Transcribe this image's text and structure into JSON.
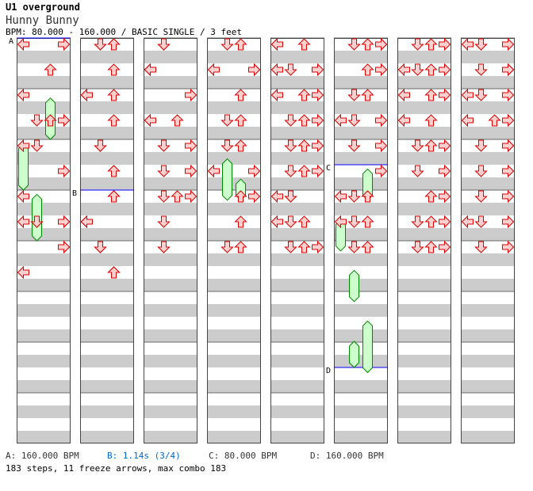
{
  "song": {
    "title": "U1 overground",
    "subtitle": "Hunny Bunny",
    "info": "BPM: 80.000 - 160.000 / BASIC SINGLE / 3 feet"
  },
  "colors": {
    "band_gray": "#cccccc",
    "arrow_fill": "#ffd0d0",
    "arrow_stroke": "#dd0000",
    "freeze_fill": "#ccffcc",
    "freeze_stroke": "#008800",
    "marker_line": "#0000ff",
    "bpm_b_color": "#0066cc"
  },
  "icons": {
    "arrow": "dance-arrow-icon (left/down/up/right)",
    "freeze": "freeze-arrow-bar"
  },
  "bpm_changes": [
    {
      "label": "A",
      "text": "A: 160.000 BPM",
      "color": "#333333",
      "column": 0,
      "position": 0
    },
    {
      "label": "B",
      "text": "B: 1.14s (3/4)",
      "color": "#0066cc",
      "column": 1,
      "position": 3
    },
    {
      "label": "C",
      "text": "C: 80.000 BPM",
      "color": "#333333",
      "column": 5,
      "position": 2.5
    },
    {
      "label": "D",
      "text": "D: 160.000 BPM",
      "color": "#333333",
      "column": 5,
      "position": 6.5
    }
  ],
  "stats": "183 steps, 11 freeze arrows, max combo 183",
  "chart": {
    "columns": 8,
    "measures_per_column": 8,
    "lanes": [
      "left",
      "down",
      "up",
      "right"
    ],
    "notes": [
      [
        [
          0,
          0,
          0
        ],
        [
          0,
          0,
          3
        ],
        [
          1,
          1,
          2
        ],
        [
          2,
          1,
          0
        ],
        [
          3,
          1,
          1
        ],
        [
          3,
          2,
          2
        ],
        [
          3,
          3,
          3
        ],
        [
          4,
          1,
          0
        ],
        [
          4,
          1,
          1
        ],
        [
          5,
          1,
          3
        ],
        [
          6,
          1,
          0
        ],
        [
          7,
          0,
          3
        ],
        [
          7,
          2,
          1
        ],
        [
          7,
          3,
          1
        ],
        [
          7,
          3,
          0
        ],
        [
          7,
          3,
          3
        ],
        [
          8,
          0,
          3
        ],
        [
          8,
          1,
          3
        ],
        [
          9,
          1,
          0
        ]
      ],
      [
        [
          0,
          0,
          2
        ],
        [
          0,
          1,
          2
        ],
        [
          0,
          2,
          1
        ],
        [
          0,
          3,
          1
        ],
        [
          1,
          1,
          2
        ],
        [
          2,
          0,
          0
        ],
        [
          2,
          1,
          0
        ],
        [
          2,
          3,
          2
        ],
        [
          3,
          1,
          2
        ],
        [
          4,
          1,
          1
        ],
        [
          4,
          2,
          1
        ],
        [
          4,
          3,
          1
        ],
        [
          5,
          1,
          2
        ],
        [
          5,
          2,
          2
        ],
        [
          6,
          1,
          2
        ],
        [
          6,
          2,
          2
        ],
        [
          6,
          3,
          2
        ],
        [
          7,
          1,
          0
        ],
        [
          7,
          2,
          0
        ],
        [
          7,
          3,
          0
        ],
        [
          8,
          0,
          1
        ],
        [
          8,
          1,
          1
        ],
        [
          8,
          2,
          1
        ],
        [
          9,
          1,
          2
        ],
        [
          9,
          2,
          2
        ],
        [
          9,
          3,
          2
        ]
      ],
      [
        [
          0,
          1,
          1
        ],
        [
          0,
          2,
          1
        ],
        [
          0,
          3,
          1
        ],
        [
          1,
          1,
          0
        ],
        [
          1,
          2,
          0
        ],
        [
          1,
          3,
          0
        ],
        [
          2,
          1,
          3
        ],
        [
          3,
          0,
          0
        ],
        [
          3,
          1,
          2
        ],
        [
          3,
          2,
          0
        ],
        [
          4,
          1,
          1
        ],
        [
          4,
          2,
          3
        ],
        [
          5,
          1,
          1
        ],
        [
          5,
          2,
          3
        ],
        [
          6,
          1,
          2
        ],
        [
          6,
          2,
          3
        ],
        [
          6,
          3,
          1
        ],
        [
          7,
          3,
          1
        ],
        [
          8,
          1,
          1
        ],
        [
          8,
          3,
          1
        ]
      ],
      [
        [
          0,
          0,
          2
        ],
        [
          0,
          1,
          1
        ],
        [
          1,
          1,
          3
        ],
        [
          1,
          2,
          0
        ],
        [
          1,
          3,
          3
        ],
        [
          2,
          1,
          2
        ],
        [
          3,
          0,
          1
        ],
        [
          3,
          1,
          2
        ],
        [
          4,
          0,
          2
        ],
        [
          4,
          1,
          1
        ],
        [
          5,
          0,
          3
        ],
        [
          5,
          1,
          0
        ],
        [
          6,
          1,
          2
        ],
        [
          6,
          2,
          3
        ],
        [
          7,
          1,
          2
        ],
        [
          8,
          0,
          2
        ],
        [
          8,
          1,
          1
        ]
      ],
      [
        [
          0,
          0,
          0
        ],
        [
          0,
          1,
          2
        ],
        [
          0,
          2,
          0
        ],
        [
          1,
          0,
          0
        ],
        [
          1,
          1,
          1
        ],
        [
          1,
          2,
          3
        ],
        [
          2,
          0,
          2
        ],
        [
          2,
          1,
          3
        ],
        [
          2,
          2,
          0
        ],
        [
          3,
          0,
          2
        ],
        [
          3,
          1,
          3
        ],
        [
          3,
          2,
          1
        ],
        [
          4,
          0,
          2
        ],
        [
          4,
          1,
          1
        ],
        [
          4,
          2,
          3
        ],
        [
          5,
          0,
          2
        ],
        [
          5,
          1,
          1
        ],
        [
          5,
          2,
          3
        ],
        [
          6,
          0,
          1
        ],
        [
          6,
          1,
          0
        ],
        [
          6,
          2,
          1
        ],
        [
          7,
          0,
          1
        ],
        [
          7,
          1,
          2
        ],
        [
          7,
          2,
          0
        ],
        [
          8,
          0,
          2
        ],
        [
          8,
          1,
          1
        ],
        [
          8,
          2,
          3
        ]
      ],
      [
        [
          0,
          0,
          2
        ],
        [
          0,
          1,
          3
        ],
        [
          0,
          2,
          1
        ],
        [
          0,
          3,
          3
        ],
        [
          1,
          1,
          2
        ],
        [
          1,
          2,
          3
        ],
        [
          2,
          1,
          2
        ],
        [
          2,
          2,
          1
        ],
        [
          3,
          0,
          1
        ],
        [
          3,
          1,
          3
        ],
        [
          3,
          2,
          0
        ],
        [
          4,
          1,
          3
        ],
        [
          4,
          2,
          1
        ],
        [
          5,
          1,
          3
        ],
        [
          6,
          1,
          0
        ],
        [
          6,
          2,
          2
        ],
        [
          6,
          3,
          1
        ],
        [
          7,
          0,
          0
        ],
        [
          7,
          1,
          1
        ],
        [
          7,
          2,
          2
        ],
        [
          8,
          1,
          1
        ],
        [
          8,
          2,
          2
        ]
      ],
      [
        [
          0,
          0,
          2
        ],
        [
          0,
          1,
          3
        ],
        [
          0,
          2,
          1
        ],
        [
          1,
          0,
          2
        ],
        [
          1,
          1,
          1
        ],
        [
          1,
          2,
          3
        ],
        [
          1,
          3,
          0
        ],
        [
          2,
          0,
          2
        ],
        [
          2,
          1,
          0
        ],
        [
          2,
          2,
          3
        ],
        [
          3,
          1,
          0
        ],
        [
          3,
          2,
          2
        ],
        [
          4,
          0,
          3
        ],
        [
          4,
          1,
          1
        ],
        [
          4,
          2,
          2
        ],
        [
          5,
          1,
          3
        ],
        [
          5,
          2,
          1
        ],
        [
          6,
          1,
          2
        ],
        [
          6,
          2,
          3
        ],
        [
          7,
          0,
          2
        ],
        [
          7,
          1,
          1
        ],
        [
          7,
          2,
          3
        ],
        [
          8,
          0,
          2
        ],
        [
          8,
          1,
          1
        ],
        [
          8,
          2,
          3
        ]
      ],
      [
        [
          0,
          0,
          3
        ],
        [
          0,
          1,
          0
        ],
        [
          0,
          2,
          1
        ],
        [
          0,
          3,
          1
        ],
        [
          1,
          0,
          3
        ],
        [
          1,
          1,
          1
        ],
        [
          1,
          2,
          3
        ],
        [
          2,
          0,
          0
        ],
        [
          2,
          1,
          3
        ],
        [
          2,
          2,
          1
        ],
        [
          3,
          1,
          3
        ],
        [
          3,
          2,
          0
        ],
        [
          3,
          3,
          2
        ],
        [
          4,
          0,
          3
        ],
        [
          4,
          1,
          1
        ],
        [
          4,
          2,
          3
        ],
        [
          5,
          0,
          1
        ],
        [
          5,
          1,
          3
        ],
        [
          6,
          0,
          1
        ],
        [
          6,
          1,
          3
        ],
        [
          7,
          0,
          3
        ],
        [
          7,
          1,
          0
        ],
        [
          7,
          2,
          1
        ],
        [
          8,
          0,
          3
        ],
        [
          8,
          1,
          1
        ]
      ]
    ]
  }
}
